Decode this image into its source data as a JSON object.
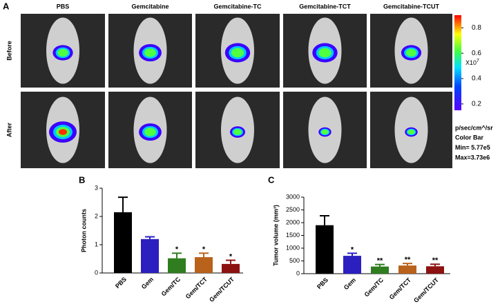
{
  "panel_labels": [
    "A",
    "B",
    "C"
  ],
  "panel_a": {
    "columns": [
      "PBS",
      "Gemcitabine",
      "Gemcitabine-TC",
      "Gemcitabine-TCT",
      "Gemcitabine-TCUT"
    ],
    "rows": [
      "Before",
      "After"
    ],
    "colorbar": {
      "lim": [
        0.15,
        0.9
      ],
      "ticks": [
        0.2,
        0.4,
        0.6,
        0.8
      ],
      "multiplier_base": "X10",
      "multiplier_exponent": "7",
      "info": [
        "p/sec/cm^/sr",
        "Color Bar",
        "Min= 5.77e5",
        "Max=3.73e6"
      ]
    }
  },
  "chart_data": [
    {
      "type": "bar",
      "ylabel": "Photon counts",
      "categories": [
        "PBS",
        "Gem",
        "Gem/TC",
        "Gem/TCT",
        "Gem/TCUT"
      ],
      "values": [
        2.15,
        1.2,
        0.52,
        0.56,
        0.32
      ],
      "errors": [
        0.53,
        0.08,
        0.18,
        0.14,
        0.13
      ],
      "colors": [
        "#000000",
        "#2b1fc0",
        "#2f7d1f",
        "#b8621c",
        "#8c1111"
      ],
      "annotations": [
        null,
        null,
        "*",
        "*",
        "*"
      ],
      "ylim": [
        0,
        3
      ],
      "yticks": [
        0,
        1,
        2,
        3
      ]
    },
    {
      "type": "bar",
      "ylabel": "Tumor volume (mm³)",
      "categories": [
        "PBS",
        "Gem",
        "Gem/TC",
        "Gem/TCT",
        "Gem/TCUT"
      ],
      "values": [
        1900,
        700,
        280,
        320,
        290
      ],
      "errors": [
        370,
        100,
        80,
        80,
        80
      ],
      "colors": [
        "#000000",
        "#2b1fc0",
        "#2f7d1f",
        "#b8621c",
        "#8c1111"
      ],
      "annotations": [
        null,
        "*",
        "**",
        "**",
        "**"
      ],
      "ylim": [
        0,
        3000
      ],
      "yticks": [
        0,
        500,
        1000,
        1500,
        2000,
        2500,
        3000
      ]
    }
  ]
}
